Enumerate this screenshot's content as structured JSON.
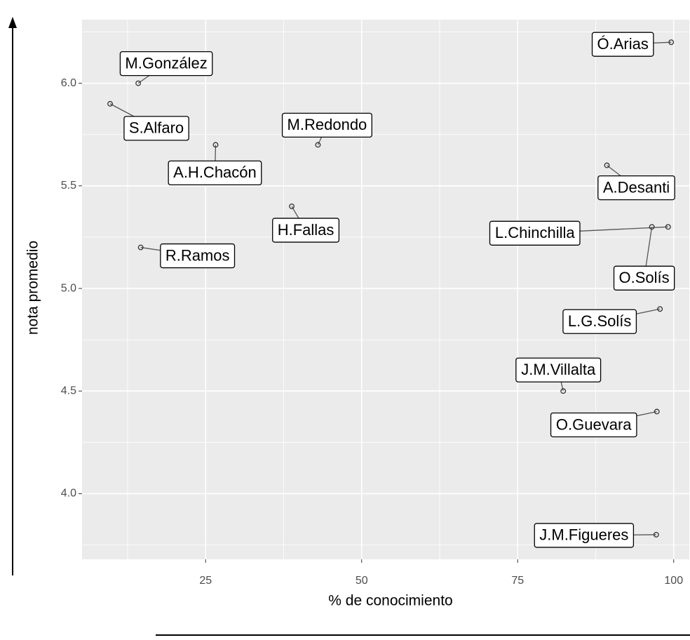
{
  "chart_data": {
    "type": "scatter",
    "x_label": "% de conocimiento",
    "y_label": "nota promedio",
    "xlim": [
      5.2,
      102.5
    ],
    "ylim": [
      3.68,
      6.31
    ],
    "xticks": [
      25,
      50,
      75,
      100
    ],
    "yticks": [
      {
        "value": 4,
        "label": "4.0"
      },
      4.5,
      {
        "value": 5,
        "label": "5.0"
      },
      5.5,
      {
        "value": 6,
        "label": "6.0"
      }
    ],
    "x_minor_ticks": [
      12.5,
      37.5,
      62.5,
      87.5
    ],
    "y_minor_ticks": [
      3.75,
      4.25,
      4.75,
      5.25,
      5.75,
      6.25
    ],
    "grid": true,
    "color": "#333333",
    "labels": [
      "Ó.Arias",
      "M.González",
      "S.Alfaro",
      "A.H.Chacón",
      "M.Redondo",
      "A.Desanti",
      "H.Fallas",
      "L.Chinchilla",
      "O.Solís",
      "R.Ramos",
      "L.G.Solís",
      "J.M.Villalta",
      "O.Guevara",
      "J.M.Figueres"
    ],
    "x": [
      99.6,
      14.2,
      9.7,
      26.6,
      43.0,
      89.3,
      38.8,
      99.1,
      96.5,
      14.6,
      97.8,
      82.3,
      97.3,
      97.2
    ],
    "values": [
      6.2,
      6.0,
      5.9,
      5.7,
      5.7,
      5.6,
      5.4,
      5.3,
      5.3,
      5.2,
      4.9,
      4.5,
      4.4,
      3.8
    ]
  }
}
